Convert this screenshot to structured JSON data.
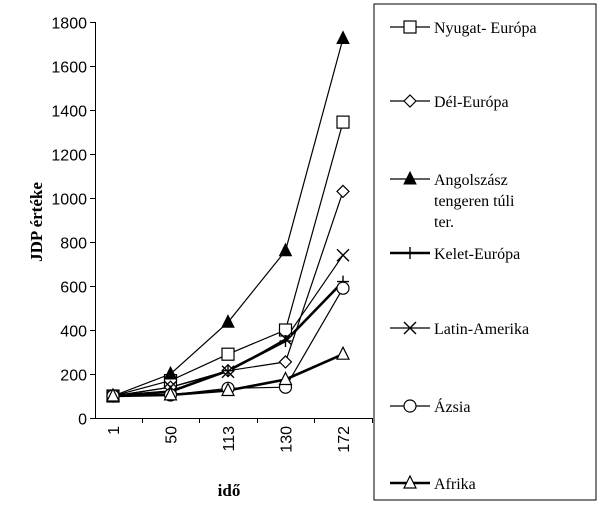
{
  "chart_data": {
    "type": "line",
    "title": "",
    "xlabel": "idő",
    "ylabel": "JDP értéke",
    "categories": [
      "1",
      "50",
      "113",
      "130",
      "172"
    ],
    "ylim": [
      0,
      1800
    ],
    "yticks": [
      0,
      200,
      400,
      600,
      800,
      1000,
      1200,
      1400,
      1600,
      1800
    ],
    "grid": false,
    "legend_position": "right",
    "series": [
      {
        "name": "Nyugat- Európa",
        "marker": "square",
        "values": [
          100,
          170,
          290,
          400,
          1345
        ]
      },
      {
        "name": "Dél-Európa",
        "marker": "diamond",
        "values": [
          100,
          140,
          215,
          255,
          1030
        ]
      },
      {
        "name": "Angolszász tengeren túli ter.",
        "name_lines": [
          "Angolszász",
          "tengeren túli",
          "ter."
        ],
        "marker": "triangle-filled",
        "values": [
          100,
          200,
          435,
          760,
          1725
        ]
      },
      {
        "name": "Kelet-Európa",
        "marker": "plus",
        "values": [
          100,
          120,
          215,
          350,
          620
        ]
      },
      {
        "name": "Latin-Amerika",
        "marker": "x",
        "values": [
          100,
          140,
          210,
          360,
          740
        ]
      },
      {
        "name": "Ázsia",
        "marker": "circle",
        "values": [
          100,
          105,
          135,
          140,
          590
        ]
      },
      {
        "name": "Afrika",
        "marker": "triangle-open",
        "values": [
          100,
          105,
          125,
          175,
          290
        ]
      }
    ]
  }
}
